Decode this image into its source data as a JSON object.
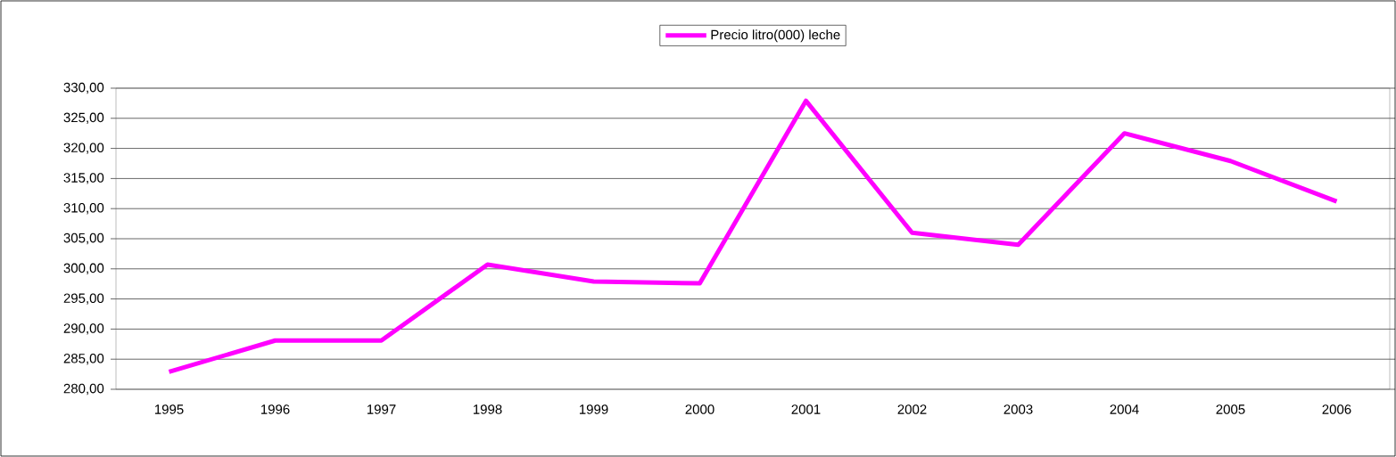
{
  "chart_data": {
    "type": "line",
    "categories": [
      "1995",
      "1996",
      "1997",
      "1998",
      "1999",
      "2000",
      "2001",
      "2002",
      "2003",
      "2004",
      "2005",
      "2006"
    ],
    "series": [
      {
        "name": "Precio litro(000)  leche",
        "color": "#ff00ff",
        "values": [
          282.9,
          288.1,
          288.1,
          300.7,
          297.9,
          297.6,
          327.9,
          306.0,
          304.0,
          322.5,
          317.9,
          311.2
        ]
      }
    ],
    "ylim": [
      280,
      330
    ],
    "yticks": [
      {
        "value": 280,
        "label": "280,00"
      },
      {
        "value": 285,
        "label": "285,00"
      },
      {
        "value": 290,
        "label": "290,00"
      },
      {
        "value": 295,
        "label": "295,00"
      },
      {
        "value": 300,
        "label": "300,00"
      },
      {
        "value": 305,
        "label": "305,00"
      },
      {
        "value": 310,
        "label": "310,00"
      },
      {
        "value": 315,
        "label": "315,00"
      },
      {
        "value": 320,
        "label": "320,00"
      },
      {
        "value": 325,
        "label": "325,00"
      },
      {
        "value": 330,
        "label": "330,00"
      }
    ],
    "grid": "y",
    "legend": "top",
    "marker": "none",
    "line_style": "solid"
  }
}
